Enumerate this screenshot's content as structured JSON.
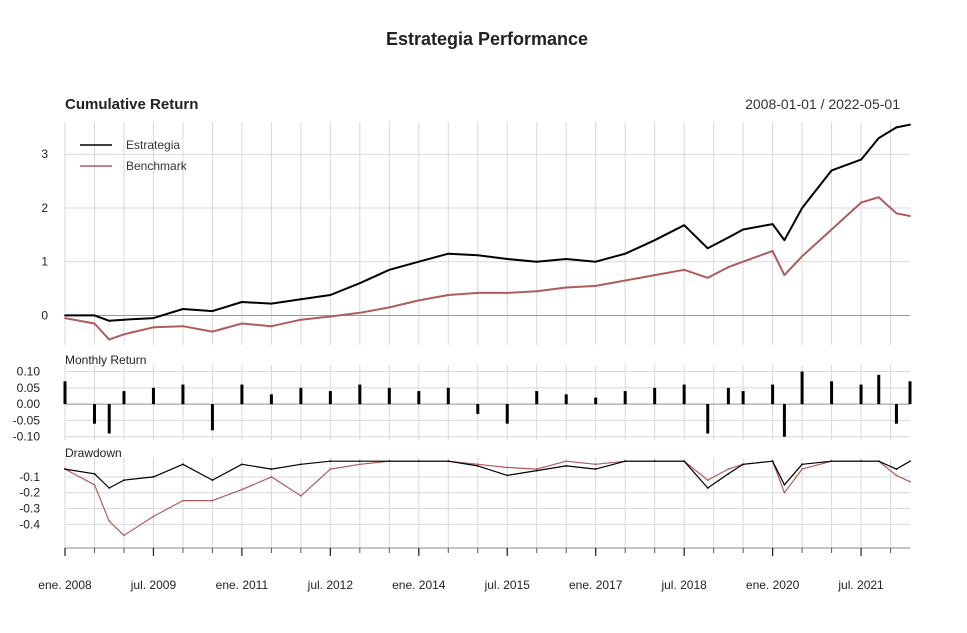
{
  "chart_data": {
    "type": "line",
    "title": "Estrategia Performance",
    "subtitle": "Cumulative Return",
    "date_range": "2008-01-01 / 2022-05-01",
    "colors": {
      "Estrategia": "#000000",
      "Benchmark": "#b05c5c",
      "grid": "#d8d8d8",
      "zero": "#999999"
    },
    "x_tick_labels": [
      "ene. 2008",
      "jul. 2009",
      "ene. 2011",
      "jul. 2012",
      "ene. 2014",
      "jul. 2015",
      "ene. 2017",
      "jul. 2018",
      "ene. 2020",
      "jul. 2021"
    ],
    "x_tick_values": [
      2008.0,
      2009.5,
      2011.0,
      2012.5,
      2014.0,
      2015.5,
      2017.0,
      2018.5,
      2020.0,
      2021.5
    ],
    "x_range": [
      2008.0,
      2022.33
    ],
    "legend": [
      "Estrategia",
      "Benchmark"
    ],
    "legend_position": "top-left",
    "panels": [
      {
        "name": "Cumulative Return",
        "ylim": [
          -0.55,
          3.6
        ],
        "y_ticks": [
          0,
          1,
          2,
          3
        ],
        "y_tick_labels": [
          "0",
          "1",
          "2",
          "3"
        ],
        "series": [
          {
            "name": "Estrategia",
            "x": [
              2008.0,
              2008.5,
              2008.75,
              2009.0,
              2009.5,
              2010.0,
              2010.5,
              2011.0,
              2011.5,
              2012.0,
              2012.5,
              2013.0,
              2013.5,
              2014.0,
              2014.5,
              2015.0,
              2015.5,
              2016.0,
              2016.5,
              2017.0,
              2017.5,
              2018.0,
              2018.5,
              2018.9,
              2019.25,
              2019.5,
              2020.0,
              2020.2,
              2020.5,
              2021.0,
              2021.5,
              2021.8,
              2022.1,
              2022.33
            ],
            "y": [
              0.0,
              0.0,
              -0.1,
              -0.08,
              -0.05,
              0.12,
              0.08,
              0.25,
              0.22,
              0.3,
              0.38,
              0.6,
              0.85,
              1.0,
              1.15,
              1.12,
              1.05,
              1.0,
              1.05,
              1.0,
              1.15,
              1.4,
              1.68,
              1.25,
              1.45,
              1.6,
              1.7,
              1.4,
              2.0,
              2.7,
              2.9,
              3.3,
              3.5,
              3.55
            ]
          },
          {
            "name": "Benchmark",
            "x": [
              2008.0,
              2008.5,
              2008.75,
              2009.0,
              2009.5,
              2010.0,
              2010.5,
              2011.0,
              2011.5,
              2012.0,
              2012.5,
              2013.0,
              2013.5,
              2014.0,
              2014.5,
              2015.0,
              2015.5,
              2016.0,
              2016.5,
              2017.0,
              2017.5,
              2018.0,
              2018.5,
              2018.9,
              2019.25,
              2019.5,
              2020.0,
              2020.2,
              2020.5,
              2021.0,
              2021.5,
              2021.8,
              2022.1,
              2022.33
            ],
            "y": [
              -0.05,
              -0.15,
              -0.45,
              -0.35,
              -0.22,
              -0.2,
              -0.3,
              -0.15,
              -0.2,
              -0.08,
              -0.02,
              0.05,
              0.15,
              0.28,
              0.38,
              0.42,
              0.42,
              0.45,
              0.52,
              0.55,
              0.65,
              0.75,
              0.85,
              0.7,
              0.9,
              1.0,
              1.2,
              0.75,
              1.1,
              1.6,
              2.1,
              2.2,
              1.9,
              1.85
            ]
          }
        ]
      },
      {
        "name": "Monthly Return",
        "ylim": [
          -0.11,
          0.12
        ],
        "y_ticks": [
          0.1,
          0.05,
          0.0,
          -0.05,
          -0.1
        ],
        "y_tick_labels": [
          "0.10",
          "0.05",
          "0.00",
          "-0.05",
          "-0.10"
        ],
        "bar_series": "Estrategia",
        "x": [
          2008.0,
          2008.5,
          2008.75,
          2009.0,
          2009.5,
          2010.0,
          2010.5,
          2011.0,
          2011.5,
          2012.0,
          2012.5,
          2013.0,
          2013.5,
          2014.0,
          2014.5,
          2015.0,
          2015.5,
          2016.0,
          2016.5,
          2017.0,
          2017.5,
          2018.0,
          2018.5,
          2018.9,
          2019.25,
          2019.5,
          2020.0,
          2020.2,
          2020.5,
          2021.0,
          2021.5,
          2021.8,
          2022.1,
          2022.33
        ],
        "values": [
          0.07,
          -0.06,
          -0.09,
          0.04,
          0.05,
          0.06,
          -0.08,
          0.06,
          0.03,
          0.05,
          0.04,
          0.06,
          0.05,
          0.04,
          0.05,
          -0.03,
          -0.06,
          0.04,
          0.03,
          0.02,
          0.04,
          0.05,
          0.06,
          -0.09,
          0.05,
          0.04,
          0.06,
          -0.1,
          0.1,
          0.07,
          0.06,
          0.09,
          -0.06,
          0.07
        ]
      },
      {
        "name": "Drawdown",
        "ylim": [
          -0.55,
          0.02
        ],
        "y_ticks": [
          -0.1,
          -0.2,
          -0.3,
          -0.4
        ],
        "y_tick_labels": [
          "-0.1",
          "-0.2",
          "-0.3",
          "-0.4"
        ],
        "series": [
          {
            "name": "Estrategia",
            "x": [
              2008.0,
              2008.5,
              2008.75,
              2009.0,
              2009.5,
              2010.0,
              2010.5,
              2011.0,
              2011.5,
              2012.0,
              2012.5,
              2013.0,
              2013.5,
              2014.0,
              2014.5,
              2015.0,
              2015.5,
              2016.0,
              2016.5,
              2017.0,
              2017.5,
              2018.0,
              2018.5,
              2018.9,
              2019.25,
              2019.5,
              2020.0,
              2020.2,
              2020.5,
              2021.0,
              2021.5,
              2021.8,
              2022.1,
              2022.33
            ],
            "y": [
              -0.05,
              -0.08,
              -0.17,
              -0.12,
              -0.1,
              -0.02,
              -0.12,
              -0.02,
              -0.05,
              -0.02,
              0.0,
              0.0,
              0.0,
              0.0,
              0.0,
              -0.03,
              -0.09,
              -0.06,
              -0.03,
              -0.05,
              0.0,
              0.0,
              0.0,
              -0.17,
              -0.08,
              -0.02,
              0.0,
              -0.15,
              -0.02,
              0.0,
              0.0,
              0.0,
              -0.05,
              0.0
            ]
          },
          {
            "name": "Benchmark",
            "x": [
              2008.0,
              2008.5,
              2008.75,
              2009.0,
              2009.5,
              2010.0,
              2010.5,
              2011.0,
              2011.5,
              2012.0,
              2012.5,
              2013.0,
              2013.5,
              2014.0,
              2014.5,
              2015.0,
              2015.5,
              2016.0,
              2016.5,
              2017.0,
              2017.5,
              2018.0,
              2018.5,
              2018.9,
              2019.25,
              2019.5,
              2020.0,
              2020.2,
              2020.5,
              2021.0,
              2021.5,
              2021.8,
              2022.1,
              2022.33
            ],
            "y": [
              -0.05,
              -0.15,
              -0.38,
              -0.47,
              -0.35,
              -0.25,
              -0.25,
              -0.18,
              -0.1,
              -0.22,
              -0.05,
              -0.02,
              0.0,
              0.0,
              0.0,
              -0.02,
              -0.04,
              -0.05,
              0.0,
              -0.02,
              0.0,
              0.0,
              0.0,
              -0.12,
              -0.05,
              -0.02,
              0.0,
              -0.2,
              -0.05,
              0.0,
              0.0,
              0.0,
              -0.09,
              -0.13
            ]
          }
        ]
      }
    ]
  }
}
